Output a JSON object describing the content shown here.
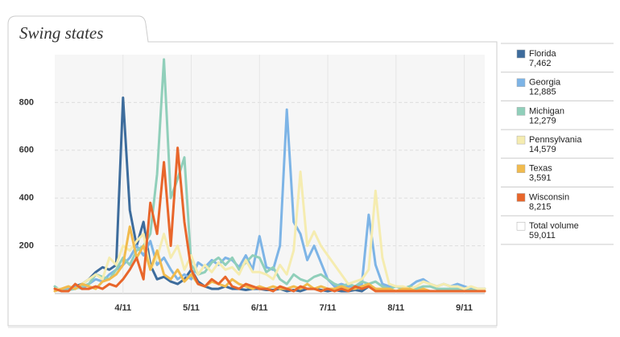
{
  "chart_data": {
    "type": "line",
    "title": "Swing states",
    "categories": [
      null,
      null,
      null,
      null,
      null,
      null,
      null,
      null,
      null,
      null,
      "4/11",
      null,
      null,
      null,
      null,
      null,
      null,
      null,
      null,
      null,
      "5/11",
      null,
      null,
      null,
      null,
      null,
      null,
      null,
      null,
      null,
      "6/11",
      null,
      null,
      null,
      null,
      null,
      null,
      null,
      null,
      null,
      "7/11",
      null,
      null,
      null,
      null,
      null,
      null,
      null,
      null,
      null,
      "8/11",
      null,
      null,
      null,
      null,
      null,
      null,
      null,
      null,
      null,
      "9/11",
      null,
      null,
      null
    ],
    "ylim": [
      0,
      1000
    ],
    "yticks": [
      200,
      400,
      600,
      800
    ],
    "grid": true,
    "series": [
      {
        "name": "Florida",
        "total": "7,462",
        "color": "#3d6c9c",
        "values": [
          20,
          10,
          15,
          30,
          40,
          60,
          90,
          110,
          100,
          120,
          820,
          350,
          200,
          300,
          120,
          60,
          70,
          50,
          40,
          60,
          100,
          50,
          30,
          20,
          20,
          30,
          20,
          20,
          15,
          20,
          20,
          15,
          15,
          20,
          10,
          15,
          10,
          20,
          20,
          15,
          10,
          15,
          10,
          10,
          15,
          10,
          30,
          20,
          10,
          10,
          10,
          10,
          15,
          10,
          10,
          10,
          10,
          10,
          10,
          10,
          10,
          10,
          10,
          10
        ]
      },
      {
        "name": "Georgia",
        "total": "12,885",
        "color": "#7db4e6",
        "values": [
          20,
          10,
          20,
          30,
          20,
          40,
          60,
          50,
          80,
          100,
          120,
          150,
          200,
          160,
          220,
          120,
          150,
          100,
          60,
          80,
          60,
          130,
          110,
          140,
          120,
          150,
          140,
          110,
          160,
          100,
          240,
          110,
          100,
          200,
          770,
          300,
          250,
          140,
          200,
          130,
          60,
          30,
          40,
          30,
          30,
          40,
          330,
          120,
          40,
          30,
          30,
          20,
          30,
          50,
          60,
          40,
          30,
          40,
          30,
          40,
          30,
          20,
          10,
          20
        ]
      },
      {
        "name": "Michigan",
        "total": "12,279",
        "color": "#90cfba",
        "values": [
          30,
          10,
          15,
          20,
          30,
          40,
          80,
          70,
          60,
          100,
          150,
          120,
          180,
          200,
          250,
          500,
          980,
          400,
          480,
          570,
          120,
          80,
          90,
          130,
          150,
          120,
          150,
          100,
          130,
          160,
          150,
          90,
          110,
          60,
          40,
          80,
          60,
          50,
          70,
          80,
          60,
          40,
          30,
          40,
          30,
          50,
          40,
          50,
          30,
          20,
          30,
          20,
          30,
          20,
          30,
          30,
          20,
          20,
          20,
          20,
          20,
          15,
          20,
          20
        ]
      },
      {
        "name": "Pennsylvania",
        "total": "14,579",
        "color": "#f5ecb0",
        "values": [
          20,
          20,
          30,
          20,
          40,
          60,
          80,
          60,
          150,
          120,
          200,
          180,
          220,
          250,
          100,
          150,
          250,
          150,
          200,
          100,
          160,
          80,
          120,
          90,
          130,
          100,
          110,
          80,
          140,
          90,
          90,
          80,
          60,
          120,
          80,
          180,
          510,
          200,
          260,
          200,
          160,
          120,
          80,
          40,
          50,
          60,
          100,
          430,
          150,
          40,
          30,
          30,
          20,
          30,
          50,
          40,
          30,
          40,
          30,
          30,
          20,
          30,
          20,
          20
        ]
      },
      {
        "name": "Texas",
        "total": "3,591",
        "color": "#f1bb4e",
        "values": [
          10,
          20,
          30,
          20,
          40,
          30,
          20,
          50,
          60,
          80,
          120,
          280,
          150,
          200,
          100,
          180,
          80,
          60,
          100,
          50,
          80,
          40,
          30,
          50,
          40,
          30,
          60,
          40,
          30,
          20,
          30,
          20,
          30,
          20,
          20,
          30,
          20,
          40,
          20,
          30,
          20,
          20,
          30,
          20,
          20,
          30,
          40,
          20,
          20,
          20,
          10,
          20,
          20,
          10,
          20,
          10,
          10,
          10,
          10,
          10,
          10,
          10,
          10,
          10
        ]
      },
      {
        "name": "Wisconsin",
        "total": "8,215",
        "color": "#e8662b",
        "values": [
          20,
          10,
          10,
          40,
          20,
          20,
          30,
          20,
          40,
          30,
          60,
          100,
          150,
          60,
          380,
          250,
          550,
          200,
          610,
          300,
          100,
          40,
          30,
          60,
          40,
          70,
          30,
          20,
          40,
          30,
          20,
          20,
          10,
          30,
          20,
          10,
          30,
          20,
          20,
          10,
          20,
          10,
          20,
          10,
          30,
          20,
          30,
          10,
          10,
          10,
          10,
          10,
          10,
          10,
          10,
          10,
          10,
          10,
          10,
          10,
          10,
          10,
          10,
          10
        ]
      }
    ],
    "total_volume": {
      "name": "Total volume",
      "total": "59,011",
      "color": "#ffffff"
    }
  }
}
